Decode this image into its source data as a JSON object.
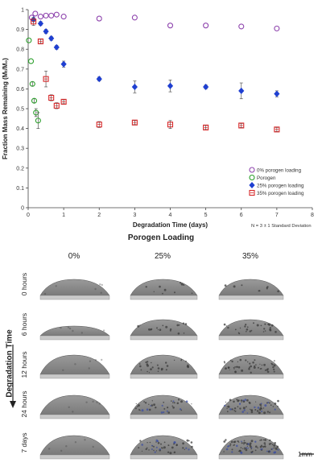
{
  "chart_data": {
    "type": "scatter",
    "xlabel": "Degradation Time (days)",
    "ylabel": "Fraction Mass Remaining (Mₜ/M₀)",
    "xlim": [
      0,
      8
    ],
    "ylim": [
      0,
      1
    ],
    "x_ticks": [
      "0",
      "1",
      "2",
      "3",
      "4",
      "5",
      "6",
      "7",
      "8"
    ],
    "y_ticks": [
      "0",
      "0.1",
      "0.2",
      "0.3",
      "0.4",
      "0.5",
      "0.6",
      "0.7",
      "0.8",
      "0.9",
      "1"
    ],
    "grid": false,
    "legend_position": "bottom-right",
    "series": [
      {
        "name": "0% porogen loading",
        "color": "#8e44ad",
        "marker": "circle",
        "x": [
          0.1,
          0.2,
          0.35,
          0.5,
          0.65,
          0.8,
          1,
          2,
          3,
          4,
          5,
          6,
          7
        ],
        "y": [
          0.96,
          0.98,
          0.965,
          0.97,
          0.97,
          0.975,
          0.965,
          0.955,
          0.96,
          0.92,
          0.92,
          0.915,
          0.905
        ],
        "err": [
          0.005,
          0.005,
          0.005,
          0.005,
          0.005,
          0.005,
          0.005,
          0.005,
          0.005,
          0.005,
          0.005,
          0.005,
          0.005
        ]
      },
      {
        "name": "Porogen",
        "color": "#2ca02c",
        "marker": "circle",
        "x": [
          0.02,
          0.08,
          0.12,
          0.17,
          0.22,
          0.28
        ],
        "y": [
          0.845,
          0.74,
          0.625,
          0.54,
          0.48,
          0.44
        ],
        "err": [
          0.005,
          0.005,
          0.01,
          0.01,
          0.02,
          0.04
        ]
      },
      {
        "name": "25% porogen loading",
        "color": "#1f3fd1",
        "marker": "diamond",
        "x": [
          0.15,
          0.35,
          0.5,
          0.65,
          0.8,
          1,
          2,
          3,
          4,
          5,
          6,
          7
        ],
        "y": [
          0.95,
          0.93,
          0.89,
          0.855,
          0.81,
          0.725,
          0.65,
          0.61,
          0.615,
          0.61,
          0.59,
          0.575
        ],
        "err": [
          0.01,
          0.01,
          0.01,
          0.01,
          0.01,
          0.015,
          0.01,
          0.03,
          0.03,
          0.01,
          0.04,
          0.015
        ]
      },
      {
        "name": "35% porogen loading",
        "color": "#d62728",
        "marker": "square",
        "x": [
          0.15,
          0.35,
          0.5,
          0.65,
          0.8,
          1,
          2,
          3,
          4,
          5,
          6,
          7
        ],
        "y": [
          0.94,
          0.84,
          0.65,
          0.555,
          0.515,
          0.535,
          0.42,
          0.43,
          0.42,
          0.405,
          0.415,
          0.395
        ],
        "err": [
          0.02,
          0.01,
          0.04,
          0.015,
          0.015,
          0.01,
          0.015,
          0.01,
          0.02,
          0.01,
          0.01,
          0.01
        ]
      }
    ],
    "annotation": "N = 3 ± 1 Standard Deviation"
  },
  "grid": {
    "title": "Porogen Loading",
    "y_title": "Degradation Time",
    "columns": [
      "0%",
      "25%",
      "35%"
    ],
    "rows": [
      "0 hours",
      "6 hours",
      "12 hours",
      "24 hours",
      "7 days"
    ],
    "scale_bar_label": "1mm"
  },
  "colors": {
    "scaffold_top": "#7a7a7a",
    "scaffold_base": "#c9c9c9",
    "pore_dark": "#3b3b3b",
    "pore_blue": "#3d4fa0"
  }
}
